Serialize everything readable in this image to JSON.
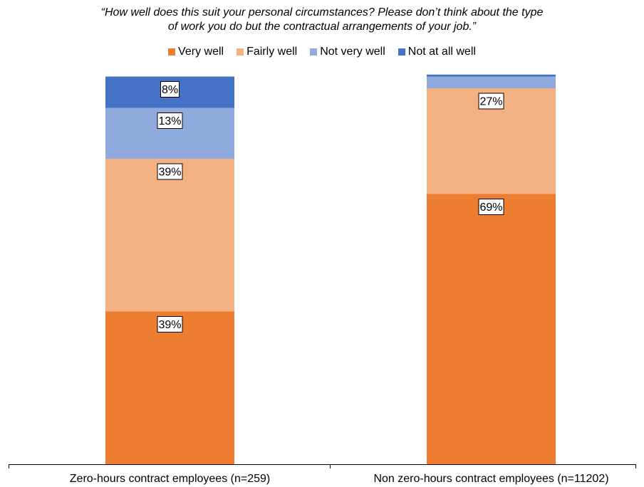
{
  "chart_data": {
    "type": "bar",
    "stacked": true,
    "title": "“How well does this suit your personal circumstances?  Please don’t think about the type of work you do but the contractual arrangements of your job.”",
    "title_lines": [
      "“How well does this suit your personal circumstances?  Please don’t think about the type",
      "of work you do but the contractual arrangements of your job.”"
    ],
    "categories": [
      "Zero-hours contract employees (n=259)",
      "Non zero-hours contract employees (n=11202)"
    ],
    "series": [
      {
        "name": "Very well",
        "color": "#ED7D31",
        "values": [
          39,
          69
        ],
        "labels": [
          "39%",
          "69%"
        ]
      },
      {
        "name": "Fairly well",
        "color": "#F4B183",
        "values": [
          39,
          27
        ],
        "labels": [
          "39%",
          "27%"
        ]
      },
      {
        "name": "Not very well",
        "color": "#8FAADC",
        "values": [
          13,
          3
        ],
        "labels": [
          "13%",
          ""
        ]
      },
      {
        "name": "Not at all well",
        "color": "#4472C4",
        "values": [
          8,
          0.5
        ],
        "labels": [
          "8%",
          ""
        ]
      }
    ],
    "ylim": [
      0,
      100
    ],
    "grid": false,
    "legend_position": "top"
  }
}
